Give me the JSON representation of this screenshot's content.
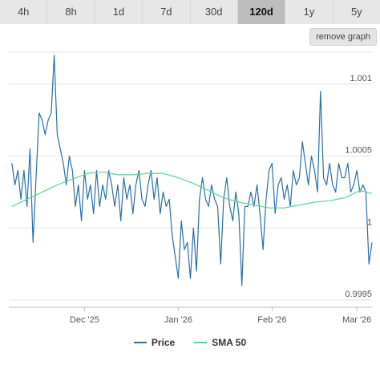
{
  "tabs": [
    {
      "label": "4h",
      "active": false
    },
    {
      "label": "8h",
      "active": false
    },
    {
      "label": "1d",
      "active": false
    },
    {
      "label": "7d",
      "active": false
    },
    {
      "label": "30d",
      "active": false
    },
    {
      "label": "120d",
      "active": true
    },
    {
      "label": "1y",
      "active": false
    },
    {
      "label": "5y",
      "active": false
    }
  ],
  "remove_graph_label": "remove graph",
  "colors": {
    "price": "#2a6fa8",
    "sma": "#5cd68f",
    "grid": "#e3e3e3",
    "axis": "#bbbbbb"
  },
  "chart_data": {
    "type": "line",
    "title": "",
    "xlabel": "",
    "ylabel": "",
    "x_range": [
      "2025-11-06",
      "2026-03-06"
    ],
    "ylim": [
      0.99945,
      1.00125
    ],
    "x_ticks": [
      {
        "date": "2025-12-01",
        "label": "Dec '25"
      },
      {
        "date": "2026-01-01",
        "label": "Jan '26"
      },
      {
        "date": "2026-02-01",
        "label": "Feb '26"
      },
      {
        "date": "2026-03-01",
        "label": "Mar '26"
      }
    ],
    "y_ticks": [
      {
        "value": 0.9995,
        "label": "0.9995"
      },
      {
        "value": 1.0,
        "label": "1"
      },
      {
        "value": 1.0005,
        "label": "1.0005"
      },
      {
        "value": 1.001,
        "label": "1.001"
      }
    ],
    "grid": true,
    "legend_position": "bottom",
    "series": [
      {
        "name": "Price",
        "x": [
          "2025-11-07",
          "2025-11-08",
          "2025-11-09",
          "2025-11-10",
          "2025-11-11",
          "2025-11-12",
          "2025-11-13",
          "2025-11-14",
          "2025-11-15",
          "2025-11-16",
          "2025-11-17",
          "2025-11-18",
          "2025-11-19",
          "2025-11-20",
          "2025-11-21",
          "2025-11-22",
          "2025-11-23",
          "2025-11-24",
          "2025-11-25",
          "2025-11-26",
          "2025-11-27",
          "2025-11-28",
          "2025-11-29",
          "2025-11-30",
          "2025-12-01",
          "2025-12-02",
          "2025-12-03",
          "2025-12-04",
          "2025-12-05",
          "2025-12-06",
          "2025-12-07",
          "2025-12-08",
          "2025-12-09",
          "2025-12-10",
          "2025-12-11",
          "2025-12-12",
          "2025-12-13",
          "2025-12-14",
          "2025-12-15",
          "2025-12-16",
          "2025-12-17",
          "2025-12-18",
          "2025-12-19",
          "2025-12-20",
          "2025-12-21",
          "2025-12-22",
          "2025-12-23",
          "2025-12-24",
          "2025-12-25",
          "2025-12-26",
          "2025-12-27",
          "2025-12-28",
          "2025-12-29",
          "2025-12-30",
          "2025-12-31",
          "2026-01-01",
          "2026-01-02",
          "2026-01-03",
          "2026-01-04",
          "2026-01-05",
          "2026-01-06",
          "2026-01-07",
          "2026-01-08",
          "2026-01-09",
          "2026-01-10",
          "2026-01-11",
          "2026-01-12",
          "2026-01-13",
          "2026-01-14",
          "2026-01-15",
          "2026-01-16",
          "2026-01-17",
          "2026-01-18",
          "2026-01-19",
          "2026-01-20",
          "2026-01-21",
          "2026-01-22",
          "2026-01-23",
          "2026-01-24",
          "2026-01-25",
          "2026-01-26",
          "2026-01-27",
          "2026-01-28",
          "2026-01-29",
          "2026-01-30",
          "2026-01-31",
          "2026-02-01",
          "2026-02-02",
          "2026-02-03",
          "2026-02-04",
          "2026-02-05",
          "2026-02-06",
          "2026-02-07",
          "2026-02-08",
          "2026-02-09",
          "2026-02-10",
          "2026-02-11",
          "2026-02-12",
          "2026-02-13",
          "2026-02-14",
          "2026-02-15",
          "2026-02-16",
          "2026-02-17",
          "2026-02-18",
          "2026-02-19",
          "2026-02-20",
          "2026-02-21",
          "2026-02-22",
          "2026-02-23",
          "2026-02-24",
          "2026-02-25",
          "2026-02-26",
          "2026-02-27",
          "2026-02-28",
          "2026-03-01",
          "2026-03-02",
          "2026-03-03",
          "2026-03-04",
          "2026-03-05",
          "2026-03-06"
        ],
        "y": [
          1.00045,
          1.0003,
          1.0004,
          1.0002,
          1.0004,
          1.00015,
          1.00055,
          0.9999,
          1.00035,
          1.0008,
          1.00075,
          1.00065,
          1.00075,
          1.0008,
          1.0012,
          1.00065,
          1.00055,
          1.00045,
          1.0003,
          1.0005,
          1.0004,
          1.00015,
          1.0003,
          1.00005,
          1.0004,
          1.0002,
          1.0003,
          1.0001,
          1.0004,
          1.00015,
          1.0003,
          1.0002,
          1.0004,
          1.0003,
          1.00015,
          1.0003,
          1.00005,
          1.00035,
          1.0002,
          1.0003,
          1.0001,
          1.0003,
          1.0004,
          1.0002,
          1.00015,
          1.0003,
          1.0004,
          1.0002,
          1.00035,
          1.0001,
          1.00025,
          1.00015,
          1.0002,
          0.99995,
          0.9998,
          0.99965,
          1.00005,
          0.99985,
          0.9999,
          0.99965,
          1.0,
          0.9997,
          1.0002,
          1.00035,
          1.0002,
          1.00015,
          1.0003,
          1.0002,
          1.00015,
          0.99975,
          1.0002,
          1.00035,
          1.00015,
          1.00005,
          1.00025,
          1.0001,
          0.9996,
          1.00015,
          1.00015,
          1.00025,
          1.00015,
          1.0003,
          1.0001,
          0.99985,
          1.0002,
          1.0004,
          1.00045,
          1.0001,
          1.0003,
          1.00035,
          1.0002,
          1.0003,
          1.00015,
          1.0004,
          1.0003,
          1.00035,
          1.0006,
          1.00045,
          1.0003,
          1.0005,
          1.0004,
          1.00025,
          1.00095,
          1.00035,
          1.0003,
          1.00045,
          1.0003,
          1.00025,
          1.00045,
          1.00035,
          1.00035,
          1.00045,
          1.00025,
          1.0003,
          1.0004,
          1.00025,
          1.0003,
          1.00025,
          0.99975,
          0.9999
        ]
      },
      {
        "name": "SMA 50",
        "x": [
          "2025-11-07",
          "2025-11-12",
          "2025-11-17",
          "2025-11-22",
          "2025-11-27",
          "2025-12-02",
          "2025-12-07",
          "2025-12-12",
          "2025-12-17",
          "2025-12-22",
          "2025-12-27",
          "2026-01-01",
          "2026-01-06",
          "2026-01-11",
          "2026-01-16",
          "2026-01-21",
          "2026-01-26",
          "2026-01-31",
          "2026-02-05",
          "2026-02-10",
          "2026-02-15",
          "2026-02-20",
          "2026-02-25",
          "2026-03-02",
          "2026-03-06"
        ],
        "y": [
          1.00015,
          1.0002,
          1.00025,
          1.0003,
          1.00034,
          1.00038,
          1.00039,
          1.00037,
          1.00037,
          1.00038,
          1.00038,
          1.00035,
          1.00031,
          1.00026,
          1.00021,
          1.00018,
          1.00016,
          1.00014,
          1.00014,
          1.00016,
          1.00018,
          1.00019,
          1.00021,
          1.00026,
          1.00024
        ]
      }
    ]
  }
}
